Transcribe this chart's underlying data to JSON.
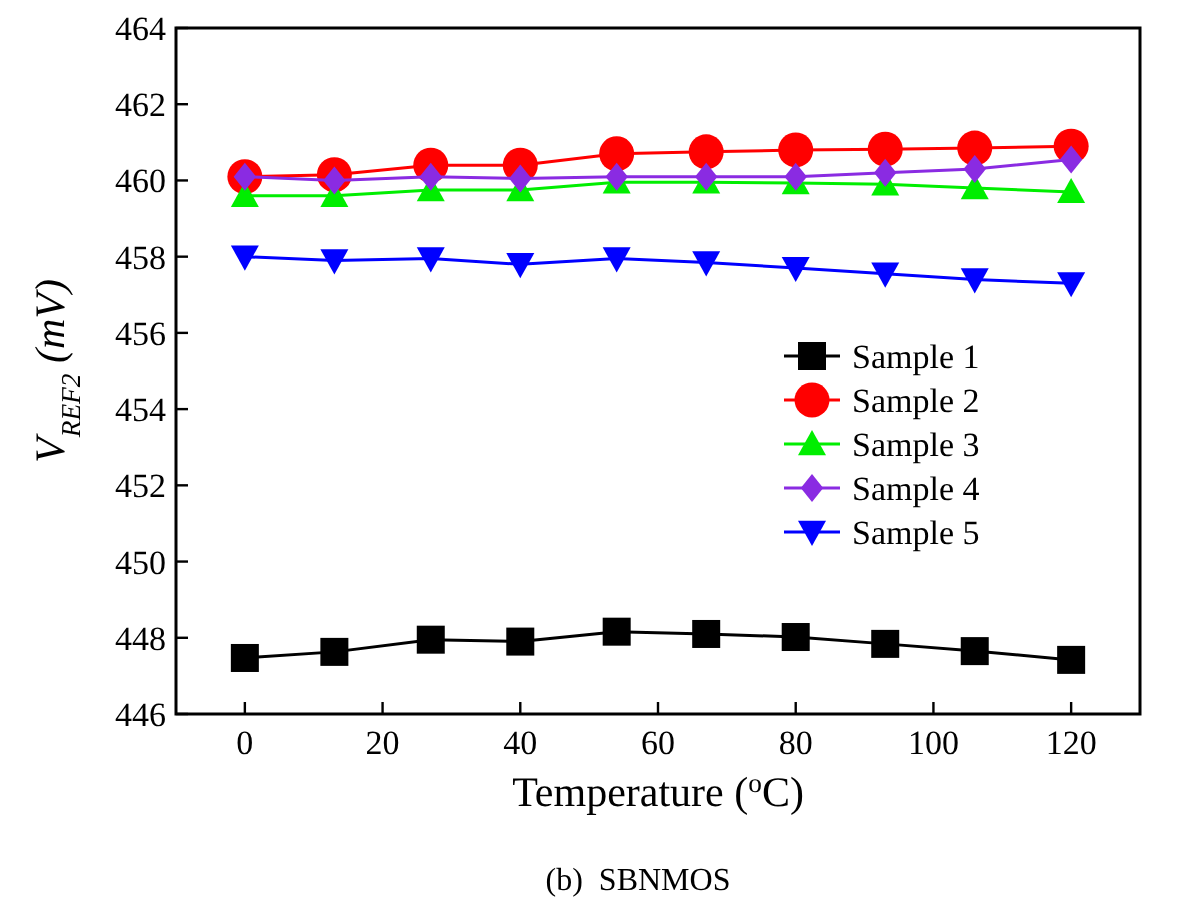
{
  "chart_data": {
    "type": "line",
    "xlabel": "Temperature ($^{o}$C)",
    "ylabel": "V$_{REF2}$ (mV)",
    "annotations": [
      "(b)  SBNMOS"
    ],
    "x": [
      0,
      13,
      27,
      40,
      54,
      67,
      80,
      93,
      106,
      120
    ],
    "xlim": [
      -10,
      130
    ],
    "xticks": [
      0,
      20,
      40,
      60,
      80,
      100,
      120
    ],
    "ylim": [
      446,
      464
    ],
    "yticks": [
      446,
      448,
      450,
      452,
      454,
      456,
      458,
      460,
      462,
      464
    ],
    "legend": "right",
    "grid": false,
    "series": [
      {
        "name": "Sample 1",
        "color": "#000000",
        "marker": "square",
        "values": [
          447.47,
          447.63,
          447.95,
          447.9,
          448.16,
          448.1,
          448.02,
          447.84,
          447.65,
          447.42
        ]
      },
      {
        "name": "Sample 2",
        "color": "#ff0000",
        "marker": "circle",
        "values": [
          460.1,
          460.15,
          460.4,
          460.4,
          460.7,
          460.75,
          460.8,
          460.82,
          460.85,
          460.9
        ]
      },
      {
        "name": "Sample 3",
        "color": "#00ee00",
        "marker": "triangle",
        "values": [
          459.6,
          459.6,
          459.75,
          459.75,
          459.95,
          459.95,
          459.93,
          459.9,
          459.8,
          459.7
        ]
      },
      {
        "name": "Sample 4",
        "color": "#8a2be2",
        "marker": "diamond",
        "values": [
          460.1,
          460.0,
          460.1,
          460.05,
          460.1,
          460.1,
          460.1,
          460.2,
          460.3,
          460.55
        ]
      },
      {
        "name": "Sample 5",
        "color": "#0000ff",
        "marker": "triangle-down",
        "values": [
          458.0,
          457.9,
          457.95,
          457.8,
          457.95,
          457.85,
          457.7,
          457.55,
          457.4,
          457.3
        ]
      }
    ]
  }
}
